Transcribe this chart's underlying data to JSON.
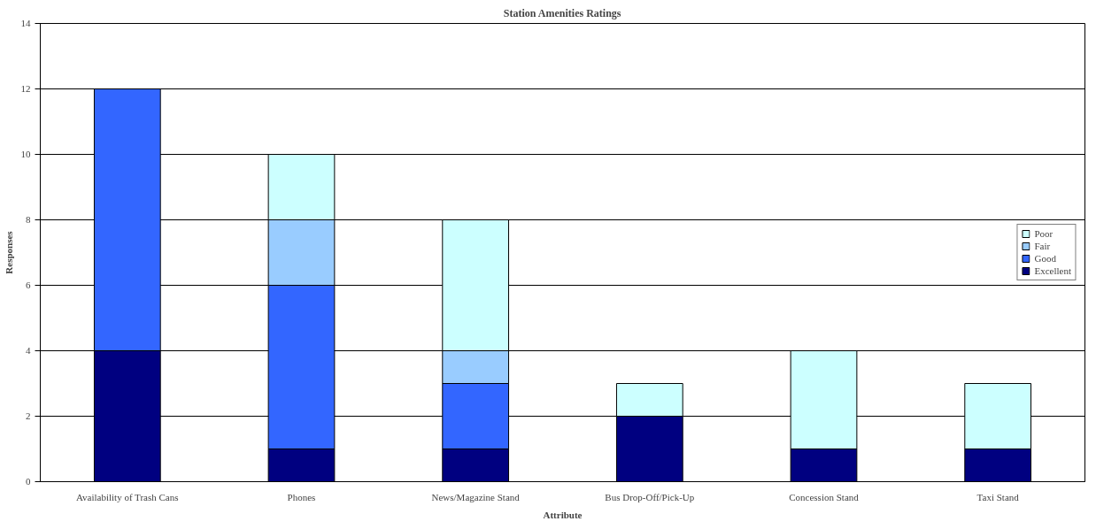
{
  "chart_data": {
    "type": "bar",
    "title": "Station Amenities Ratings",
    "xlabel": "Attribute",
    "ylabel": "Responses",
    "categories": [
      "Availability of Trash Cans",
      "Phones",
      "News/Magazine Stand",
      "Bus Drop-Off/Pick-Up",
      "Concession Stand",
      "Taxi Stand"
    ],
    "stacked": true,
    "series": [
      {
        "name": "Excellent",
        "color": "#000080",
        "values": [
          4,
          1,
          1,
          2,
          1,
          1
        ]
      },
      {
        "name": "Good",
        "color": "#3366ff",
        "values": [
          8,
          5,
          2,
          null,
          null,
          null
        ]
      },
      {
        "name": "Fair",
        "color": "#99ccff",
        "values": [
          null,
          2,
          1,
          null,
          null,
          null
        ]
      },
      {
        "name": "Poor",
        "color": "#ccffff",
        "values": [
          null,
          2,
          4,
          1,
          3,
          2
        ]
      }
    ],
    "ylim": [
      0,
      14
    ],
    "yticks": [
      0,
      2,
      4,
      6,
      8,
      10,
      12,
      14
    ],
    "grid": "y",
    "legend": "right"
  }
}
